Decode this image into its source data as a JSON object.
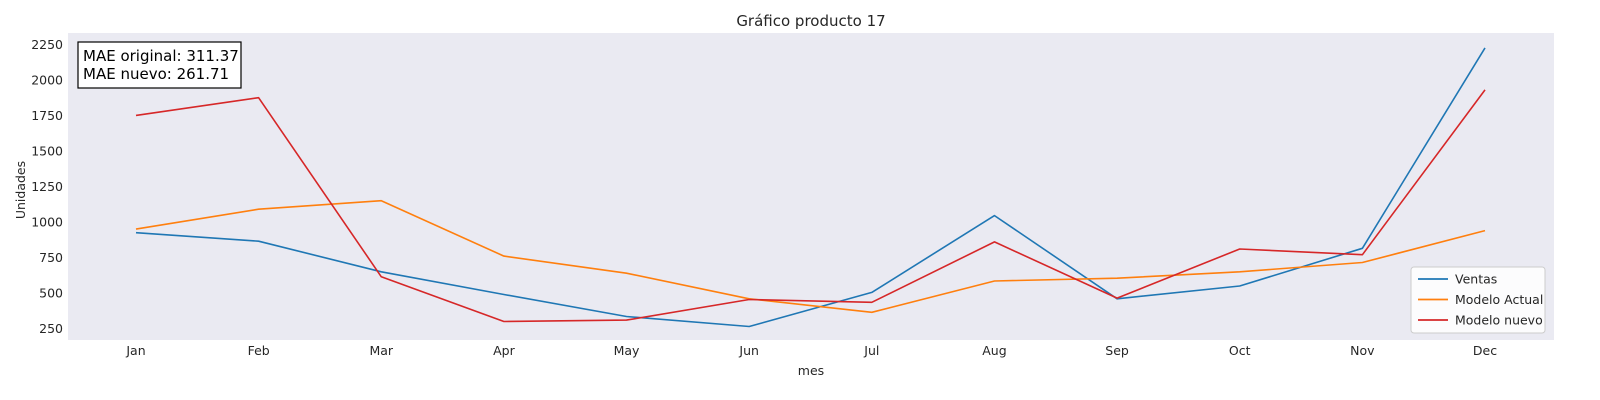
{
  "chart_data": {
    "type": "line",
    "title": "Gráfico producto 17",
    "xlabel": "mes",
    "ylabel": "Unidades",
    "categories": [
      "Jan",
      "Feb",
      "Mar",
      "Apr",
      "May",
      "Jun",
      "Jul",
      "Aug",
      "Sep",
      "Oct",
      "Nov",
      "Dec"
    ],
    "yticks": [
      250,
      500,
      750,
      1000,
      1250,
      1500,
      1750,
      2000,
      2250
    ],
    "ylim": [
      170,
      2330
    ],
    "grid": false,
    "legend_position": "bottom-right",
    "series": [
      {
        "name": "Ventas",
        "color": "#1f77b4",
        "values": [
          925,
          865,
          650,
          490,
          335,
          265,
          505,
          1045,
          460,
          550,
          815,
          2225
        ]
      },
      {
        "name": "Modelo Actual",
        "color": "#ff7f0e",
        "values": [
          950,
          1090,
          1150,
          760,
          640,
          460,
          365,
          585,
          605,
          650,
          715,
          940
        ]
      },
      {
        "name": "Modelo nuevo",
        "color": "#d62728",
        "values": [
          1750,
          1875,
          615,
          300,
          310,
          455,
          435,
          860,
          465,
          810,
          770,
          1930
        ]
      }
    ],
    "annotation": [
      "MAE original: 311.37",
      "MAE nuevo: 261.71"
    ]
  }
}
